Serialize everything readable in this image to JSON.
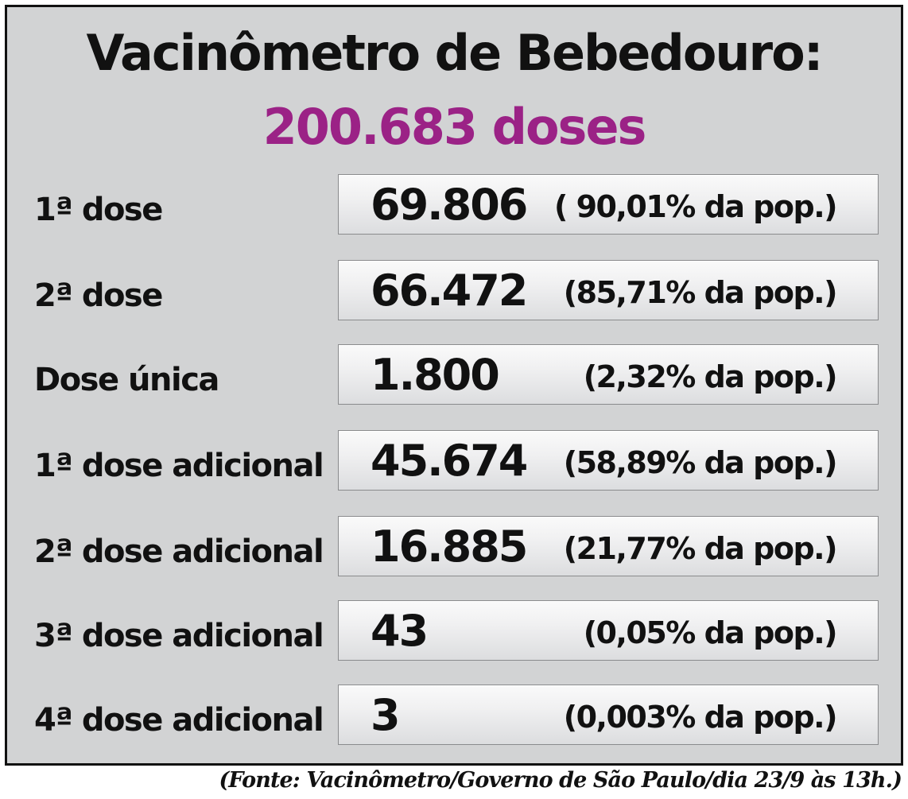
{
  "header": {
    "title": "Vacinômetro de Bebedouro:",
    "total": "200.683 doses"
  },
  "rows": [
    {
      "label": "1ª dose",
      "value": "69.806",
      "percent": "( 90,01% da pop.)"
    },
    {
      "label": "2ª dose",
      "value": "66.472",
      "percent": "(85,71% da pop.)"
    },
    {
      "label": "Dose única",
      "value": "1.800",
      "percent": "(2,32% da pop.)"
    },
    {
      "label": "1ª dose adicional",
      "value": "45.674",
      "percent": "(58,89% da pop.)"
    },
    {
      "label": "2ª dose adicional",
      "value": "16.885",
      "percent": "(21,77% da pop.)"
    },
    {
      "label": "3ª dose adicional",
      "value": "43",
      "percent": "(0,05% da pop.)"
    },
    {
      "label": "4ª dose adicional",
      "value": "3",
      "percent": "(0,003% da pop.)"
    }
  ],
  "footer": {
    "source": "(Fonte: Vacinômetro/Governo de São Paulo/dia 23/9 às 13h.)"
  },
  "colors": {
    "panel_background": "#d2d3d4",
    "text": "#111111",
    "total_accent": "#9b2286"
  }
}
